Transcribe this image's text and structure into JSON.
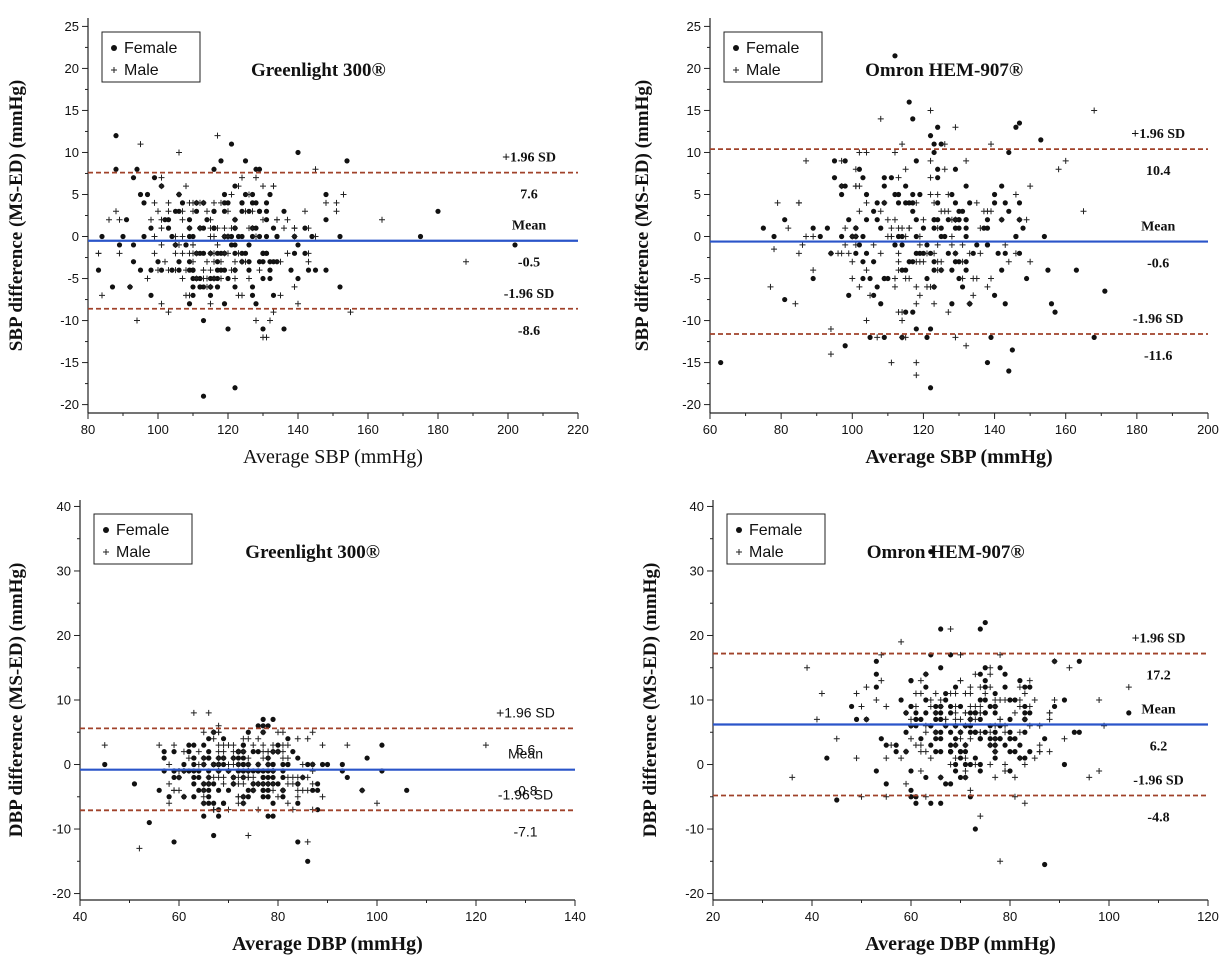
{
  "chart_data": [
    {
      "type": "scatter",
      "title": "Greenlight 300®",
      "xlabel": "Average SBP (mmHg)",
      "ylabel": "SBP difference (MS-ED) (mmHg)",
      "xlim": [
        80,
        220
      ],
      "ylim": [
        -21,
        26
      ],
      "x_ticks": [
        80,
        100,
        120,
        140,
        160,
        180,
        200,
        220
      ],
      "y_ticks": [
        -20,
        -15,
        -10,
        -5,
        0,
        5,
        10,
        15,
        20,
        25
      ],
      "grid": false,
      "legend": {
        "position": "top-left",
        "entries": [
          "Female",
          "Male"
        ]
      },
      "reference_lines": [
        {
          "label": "+1.96 SD",
          "value_label": "7.6",
          "value": 7.6,
          "style": "dashed",
          "color": "#a0422a"
        },
        {
          "label": "Mean",
          "value_label": "-0.5",
          "value": -0.5,
          "style": "solid",
          "color": "#2a55c9"
        },
        {
          "label": "-1.96 SD",
          "value_label": "-8.6",
          "value": -8.6,
          "style": "dashed",
          "color": "#a0422a"
        }
      ],
      "series": [
        {
          "name": "Female",
          "marker": "dot",
          "cx": 116,
          "sx": 14,
          "cy": -0.5,
          "sy": 4.1,
          "n": 170,
          "extras": [
            [
              88,
              12
            ],
            [
              118,
              9
            ],
            [
              113,
              -19
            ],
            [
              122,
              -18
            ],
            [
              120,
              -11
            ],
            [
              113,
              -10
            ],
            [
              180,
              3
            ],
            [
              202,
              -1
            ],
            [
              175,
              0
            ],
            [
              152,
              -6
            ],
            [
              88,
              8
            ]
          ]
        },
        {
          "name": "Male",
          "marker": "plus",
          "cx": 118,
          "sx": 15,
          "cy": -0.5,
          "sy": 4.1,
          "n": 150,
          "extras": [
            [
              95,
              11
            ],
            [
              106,
              10
            ],
            [
              188,
              -3
            ],
            [
              130,
              -12
            ],
            [
              145,
              8
            ],
            [
              155,
              -9
            ],
            [
              84,
              -7
            ],
            [
              92,
              -6
            ]
          ]
        }
      ]
    },
    {
      "type": "scatter",
      "title": "Omron HEM-907®",
      "xlabel": "Average SBP (mmHg)",
      "ylabel": "SBP difference (MS-ED) (mmHg)",
      "xlim": [
        60,
        200
      ],
      "ylim": [
        -21,
        26
      ],
      "x_ticks": [
        60,
        80,
        100,
        120,
        140,
        160,
        180,
        200
      ],
      "y_ticks": [
        -20,
        -15,
        -10,
        -5,
        0,
        5,
        10,
        15,
        20,
        25
      ],
      "grid": false,
      "legend": {
        "position": "top-left",
        "entries": [
          "Female",
          "Male"
        ]
      },
      "reference_lines": [
        {
          "label": "+1.96 SD",
          "value_label": "10.4",
          "value": 10.4,
          "style": "dashed",
          "color": "#a0422a"
        },
        {
          "label": "Mean",
          "value_label": "-0.6",
          "value": -0.6,
          "style": "solid",
          "color": "#2a55c9"
        },
        {
          "label": "-1.96 SD",
          "value_label": "-11.6",
          "value": -11.6,
          "style": "dashed",
          "color": "#a0422a"
        }
      ],
      "series": [
        {
          "name": "Female",
          "marker": "dot",
          "cx": 118,
          "sx": 17,
          "cy": -0.6,
          "sy": 5.5,
          "n": 170,
          "extras": [
            [
              112,
              21.5
            ],
            [
              147,
              13.5
            ],
            [
              171,
              -6.5
            ],
            [
              138,
              -15
            ],
            [
              122,
              -18
            ],
            [
              81,
              -7.5
            ],
            [
              145,
              -13.5
            ],
            [
              153,
              11.5
            ]
          ]
        },
        {
          "name": "Male",
          "marker": "plus",
          "cx": 116,
          "sx": 16,
          "cy": -0.6,
          "sy": 5.5,
          "n": 150,
          "extras": [
            [
              118,
              -16.5
            ],
            [
              160,
              9
            ],
            [
              78,
              -1.5
            ],
            [
              132,
              -13
            ]
          ]
        }
      ]
    },
    {
      "type": "scatter",
      "title": "Greenlight 300®",
      "xlabel": "Average DBP (mmHg)",
      "ylabel": "DBP difference (MS-ED) (mmHg)",
      "xlim": [
        40,
        140
      ],
      "ylim": [
        -21,
        41
      ],
      "x_ticks": [
        40,
        60,
        80,
        100,
        120,
        140
      ],
      "y_ticks": [
        -20,
        -10,
        0,
        10,
        20,
        30,
        40
      ],
      "grid": false,
      "legend": {
        "position": "top-left",
        "entries": [
          "Female",
          "Male"
        ]
      },
      "reference_lines": [
        {
          "label": "+1.96 SD",
          "value_label": "5.6",
          "value": 5.6,
          "style": "dashed",
          "color": "#a0422a"
        },
        {
          "label": "Mean",
          "value_label": "-0.8",
          "value": -0.8,
          "style": "solid",
          "color": "#2a55c9"
        },
        {
          "label": "-1.96 SD",
          "value_label": "-7.1",
          "value": -7.1,
          "style": "dashed",
          "color": "#a0422a"
        }
      ],
      "series": [
        {
          "name": "Female",
          "marker": "dot",
          "cx": 73,
          "sx": 9,
          "cy": -0.8,
          "sy": 3.2,
          "n": 170,
          "extras": [
            [
              86,
              -15
            ],
            [
              84,
              -12
            ],
            [
              67,
              -11
            ],
            [
              106,
              -4
            ],
            [
              45,
              0
            ],
            [
              98,
              1
            ]
          ]
        },
        {
          "name": "Male",
          "marker": "plus",
          "cx": 74,
          "sx": 9.5,
          "cy": -0.8,
          "sy": 3.2,
          "n": 150,
          "extras": [
            [
              52,
              -13
            ],
            [
              122,
              3
            ],
            [
              100,
              -6
            ],
            [
              86,
              -12
            ]
          ]
        }
      ]
    },
    {
      "type": "scatter",
      "title": "Omron HEM-907®",
      "xlabel": "Average DBP (mmHg)",
      "ylabel": "DBP difference (MS-ED) (mmHg)",
      "xlim": [
        20,
        120
      ],
      "ylim": [
        -21,
        41
      ],
      "x_ticks": [
        20,
        40,
        60,
        80,
        100,
        120
      ],
      "y_ticks": [
        -20,
        -10,
        0,
        10,
        20,
        30,
        40
      ],
      "grid": false,
      "legend": {
        "position": "top-left",
        "entries": [
          "Female",
          "Male"
        ]
      },
      "reference_lines": [
        {
          "label": "+1.96 SD",
          "value_label": "17.2",
          "value": 17.2,
          "style": "dashed",
          "color": "#a0422a"
        },
        {
          "label": "Mean",
          "value_label": "6.2",
          "value": 6.2,
          "style": "solid",
          "color": "#2a55c9"
        },
        {
          "label": "-1.96 SD",
          "value_label": "-4.8",
          "value": -4.8,
          "style": "dashed",
          "color": "#a0422a"
        }
      ],
      "series": [
        {
          "name": "Female",
          "marker": "dot",
          "cx": 70,
          "sx": 10,
          "cy": 6.2,
          "sy": 5.2,
          "n": 170,
          "extras": [
            [
              64,
              33
            ],
            [
              75,
              22
            ],
            [
              87,
              -15.5
            ],
            [
              73,
              -10
            ],
            [
              45,
              -5.5
            ],
            [
              94,
              16
            ]
          ]
        },
        {
          "name": "Male",
          "marker": "plus",
          "cx": 71,
          "sx": 11,
          "cy": 6.2,
          "sy": 5.2,
          "n": 150,
          "extras": [
            [
              36,
              -2
            ],
            [
              78,
              -15
            ],
            [
              104,
              12
            ],
            [
              96,
              -2
            ]
          ]
        }
      ]
    }
  ]
}
